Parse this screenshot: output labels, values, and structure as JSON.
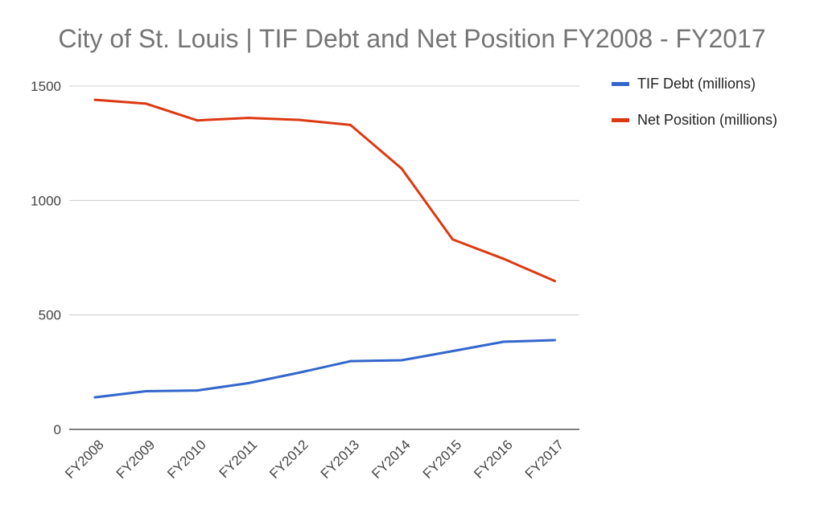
{
  "chart_data": {
    "type": "line",
    "title": "City of St. Louis | TIF Debt and Net Position FY2008 - FY2017",
    "xlabel": "",
    "ylabel": "",
    "categories": [
      "FY2008",
      "FY2009",
      "FY2010",
      "FY2011",
      "FY2012",
      "FY2013",
      "FY2014",
      "FY2015",
      "FY2016",
      "FY2017"
    ],
    "ylim": [
      0,
      1500
    ],
    "yticks": [
      0,
      500,
      1000,
      1500
    ],
    "grid": true,
    "legend_position": "right",
    "series": [
      {
        "name": "TIF Debt (millions)",
        "color": "#3366cc",
        "values": [
          140,
          167,
          170,
          202,
          248,
          298,
          302,
          342,
          383,
          390
        ]
      },
      {
        "name": "Net Position (millions)",
        "color": "#dc3912",
        "values": [
          1440,
          1423,
          1350,
          1361,
          1352,
          1330,
          1140,
          830,
          745,
          648
        ]
      }
    ]
  }
}
